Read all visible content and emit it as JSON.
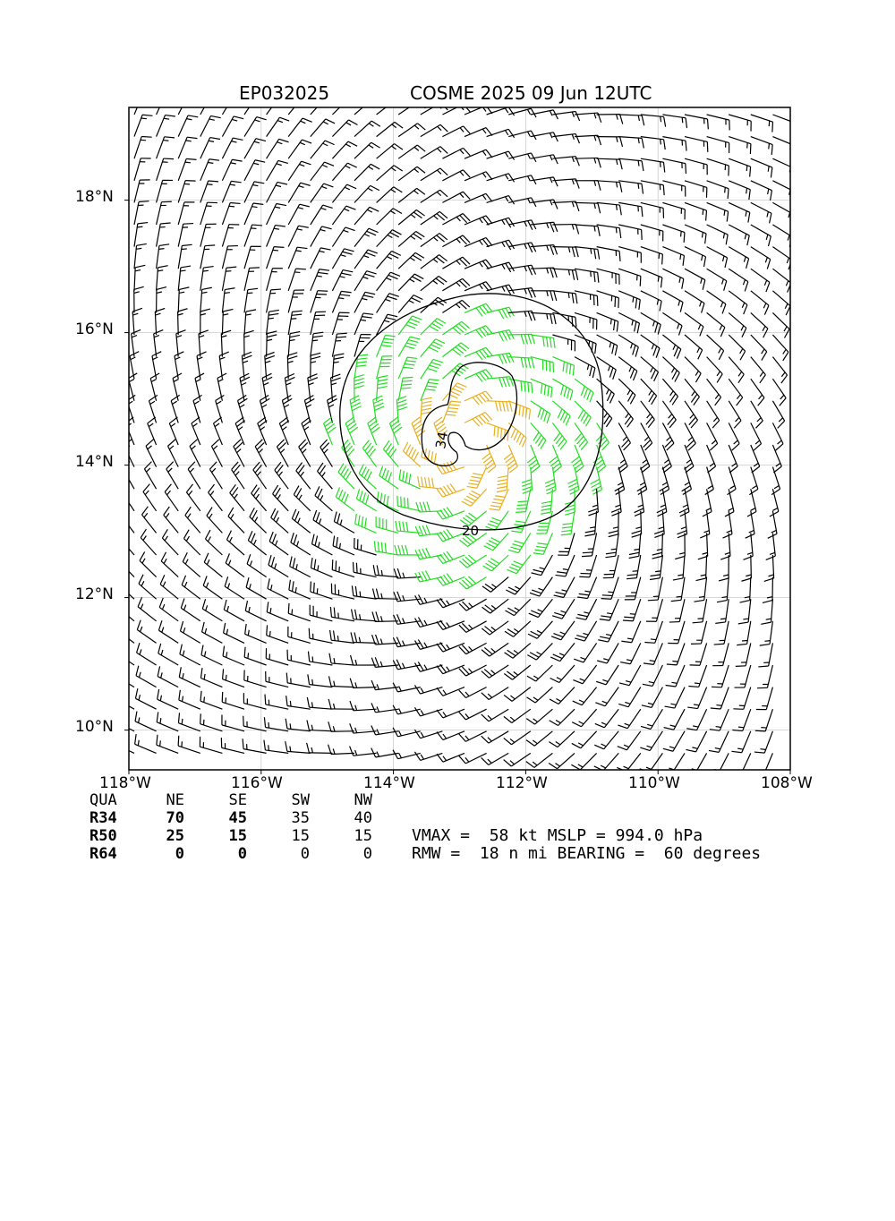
{
  "header": {
    "storm_id": "EP032025",
    "title": "COSME 2025 09 Jun 12UTC"
  },
  "map": {
    "lon_range": [
      -118,
      -108
    ],
    "lat_range": [
      9.4,
      19.4
    ],
    "x_ticks": [
      "118°W",
      "116°W",
      "114°W",
      "112°W",
      "110°W",
      "108°W"
    ],
    "y_ticks": [
      "18°N",
      "16°N",
      "14°N",
      "12°N",
      "10°N"
    ],
    "contour_labels": [
      "34",
      "20"
    ],
    "center": {
      "lon": -112.9,
      "lat": 14.3
    },
    "colors": {
      "barb_outer": "#000000",
      "barb_34kt": "#22dd22",
      "barb_50kt": "#e8b020",
      "grid": "#cccccc"
    }
  },
  "wind_radii": {
    "header": [
      "QUA",
      "NE",
      "SE",
      "SW",
      "NW"
    ],
    "rows": [
      {
        "label": "R34",
        "ne": "70",
        "se": "45",
        "sw": "35",
        "nw": "40"
      },
      {
        "label": "R50",
        "ne": "25",
        "se": "15",
        "sw": "15",
        "nw": "15"
      },
      {
        "label": "R64",
        "ne": "0",
        "se": "0",
        "sw": "0",
        "nw": "0"
      }
    ]
  },
  "stats": {
    "line1": "VMAX =  58 kt MSLP = 994.0 hPa",
    "line2": "RMW =  18 n mi BEARING =  60 degrees"
  }
}
